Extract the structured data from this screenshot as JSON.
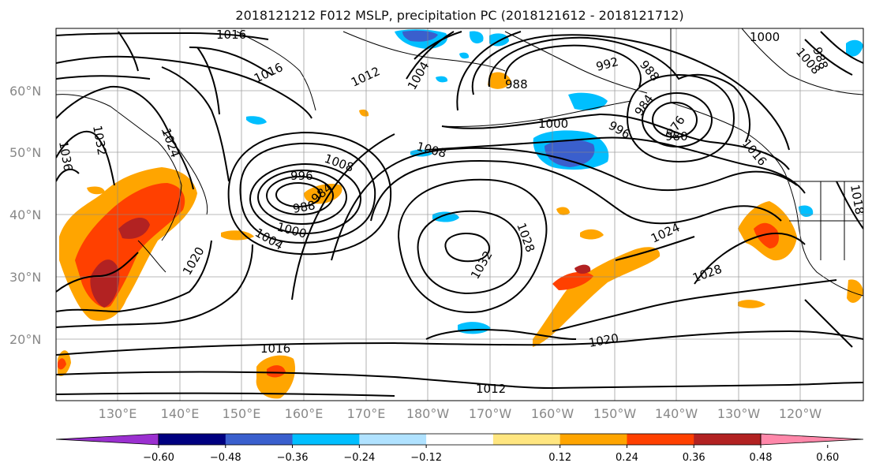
{
  "title": "2018121212 F012 MSLP, precipitation PC (2018121612 - 2018121712)",
  "lat_labels": [
    "60°N",
    "50°N",
    "40°N",
    "30°N",
    "20°N"
  ],
  "lon_labels": [
    "130°E",
    "140°E",
    "150°E",
    "160°E",
    "170°E",
    "180°W",
    "170°W",
    "160°W",
    "150°W",
    "140°W",
    "130°W",
    "120°W"
  ],
  "contour_labels": {
    "c1016_nw": "1016",
    "c1016_a": "1016",
    "c1012_a": "1012",
    "c1004_a": "1004",
    "c1000_ne": "1000",
    "c992": "992",
    "c988_a": "988",
    "c988_b": "988",
    "c984_a": "984",
    "c976": "976",
    "c980": "980",
    "c1000_b": "1000",
    "c996_a": "996",
    "c1008_a": "1008",
    "c1008_b": "1008",
    "c996_b": "996",
    "c988_c": "988",
    "c984_b": "984",
    "c1000_c": "1000",
    "c1004_b": "1004",
    "c1032_w": "1032",
    "c1024_w": "1024",
    "c1020_w": "1020",
    "c1036": "1036",
    "c1032_c": "1032",
    "c1028_c": "1028",
    "c1024_e": "1024",
    "c1028_e": "1028",
    "c1020_s": "1020",
    "c1016_s": "1016",
    "c1012_s": "1012",
    "c1016_ne": "1016",
    "c1008_ne": "1008",
    "c1018": "1018",
    "c988_ne": "988"
  },
  "colorbar": {
    "colors": [
      "#9b30d0",
      "#000080",
      "#3a5fcd",
      "#00bfff",
      "#b0e2ff",
      "#ffffff",
      "#ffe680",
      "#ffa500",
      "#ff4000",
      "#b22222",
      "#ff88aa"
    ],
    "ticks": [
      "−0.60",
      "−0.48",
      "−0.36",
      "−0.24",
      "−0.12",
      "0.12",
      "0.24",
      "0.36",
      "0.48",
      "0.60"
    ]
  }
}
